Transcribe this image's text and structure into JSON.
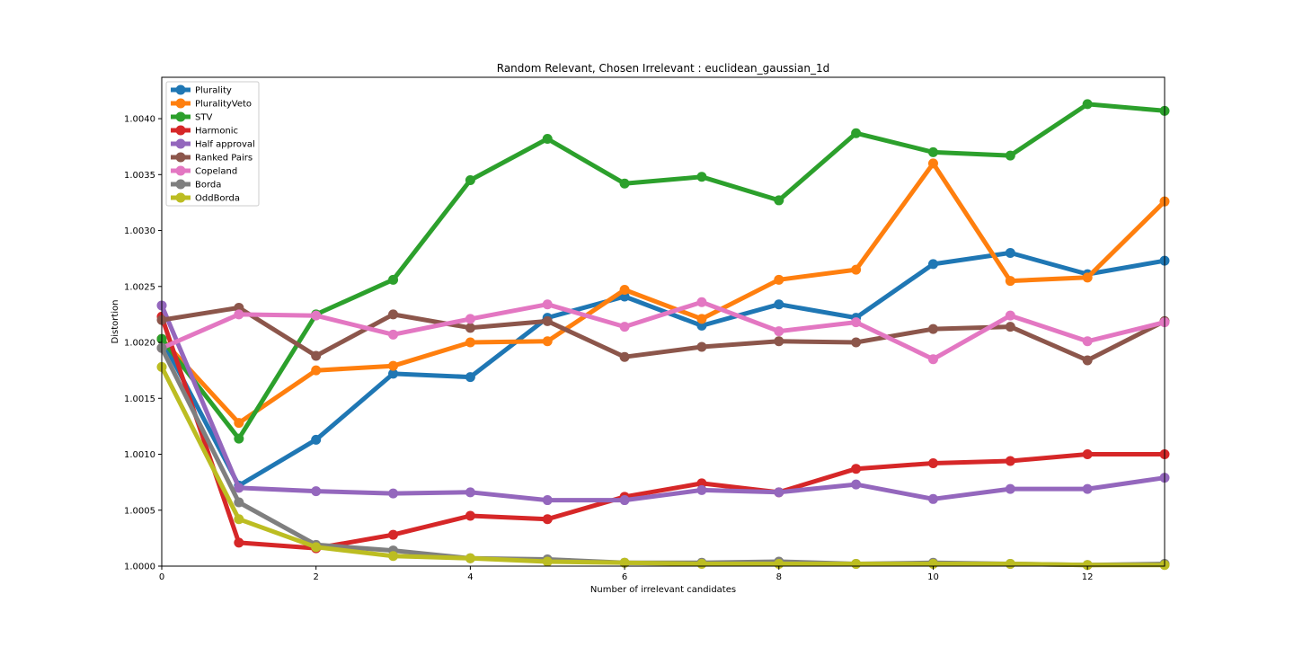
{
  "chart_data": {
    "type": "line",
    "title": "Random Relevant, Chosen Irrelevant : euclidean_gaussian_1d",
    "xlabel": "Number of irrelevant candidates",
    "ylabel": "Distortion",
    "xlim": [
      0,
      13
    ],
    "ylim": [
      1.0,
      1.00437
    ],
    "x_ticks": [
      0,
      2,
      4,
      6,
      8,
      10,
      12
    ],
    "x_tick_labels": [
      "0",
      "2",
      "4",
      "6",
      "8",
      "10",
      "12"
    ],
    "y_ticks": [
      1.0,
      1.0005,
      1.001,
      1.0015,
      1.002,
      1.0025,
      1.003,
      1.0035,
      1.004
    ],
    "y_tick_labels": [
      "1.0000",
      "1.0005",
      "1.0010",
      "1.0015",
      "1.0020",
      "1.0025",
      "1.0030",
      "1.0035",
      "1.0040"
    ],
    "grid": false,
    "legend_position": "upper-left",
    "x": [
      0,
      1,
      2,
      3,
      4,
      5,
      6,
      7,
      8,
      9,
      10,
      11,
      12,
      13
    ],
    "series": [
      {
        "name": "Plurality",
        "color": "#1f77b4",
        "values": [
          1.00203,
          1.00072,
          1.00113,
          1.00172,
          1.00169,
          1.00222,
          1.00241,
          1.00215,
          1.00234,
          1.00222,
          1.0027,
          1.0028,
          1.00261,
          1.00273
        ]
      },
      {
        "name": "PluralityVeto",
        "color": "#ff7f0e",
        "values": [
          1.00203,
          1.00128,
          1.00175,
          1.00179,
          1.002,
          1.00201,
          1.00247,
          1.00221,
          1.00256,
          1.00265,
          1.0036,
          1.00255,
          1.00258,
          1.00326
        ]
      },
      {
        "name": "STV",
        "color": "#2ca02c",
        "values": [
          1.00203,
          1.00114,
          1.00225,
          1.00256,
          1.00345,
          1.00382,
          1.00342,
          1.00348,
          1.00327,
          1.00387,
          1.0037,
          1.00367,
          1.00413,
          1.00407
        ]
      },
      {
        "name": "Harmonic",
        "color": "#d62728",
        "values": [
          1.00223,
          1.00021,
          1.00016,
          1.00028,
          1.00045,
          1.00042,
          1.00062,
          1.00074,
          1.00066,
          1.00087,
          1.00092,
          1.00094,
          1.001,
          1.001
        ]
      },
      {
        "name": "Half approval",
        "color": "#9467bd",
        "values": [
          1.00233,
          1.0007,
          1.00067,
          1.00065,
          1.00066,
          1.00059,
          1.00059,
          1.00068,
          1.00066,
          1.00073,
          1.0006,
          1.00069,
          1.00069,
          1.00079
        ]
      },
      {
        "name": "Ranked Pairs",
        "color": "#8c564b",
        "values": [
          1.0022,
          1.00231,
          1.00188,
          1.00225,
          1.00213,
          1.00219,
          1.00187,
          1.00196,
          1.00201,
          1.002,
          1.00212,
          1.00214,
          1.00184,
          1.00219
        ]
      },
      {
        "name": "Copeland",
        "color": "#e377c2",
        "values": [
          1.00195,
          1.00225,
          1.00224,
          1.00207,
          1.00221,
          1.00234,
          1.00214,
          1.00236,
          1.0021,
          1.00218,
          1.00185,
          1.00224,
          1.00201,
          1.00218
        ]
      },
      {
        "name": "Borda",
        "color": "#7f7f7f",
        "values": [
          1.00195,
          1.00057,
          1.00019,
          1.00014,
          1.00007,
          1.00006,
          1.00003,
          1.00003,
          1.00004,
          1.00002,
          1.00003,
          1.00002,
          1.00001,
          1.00002
        ]
      },
      {
        "name": "OddBorda",
        "color": "#bcbd22",
        "values": [
          1.00178,
          1.00042,
          1.00017,
          1.00009,
          1.00007,
          1.00004,
          1.00003,
          1.00002,
          1.00002,
          1.00002,
          1.00002,
          1.00002,
          1.00001,
          1.00001
        ]
      }
    ]
  }
}
